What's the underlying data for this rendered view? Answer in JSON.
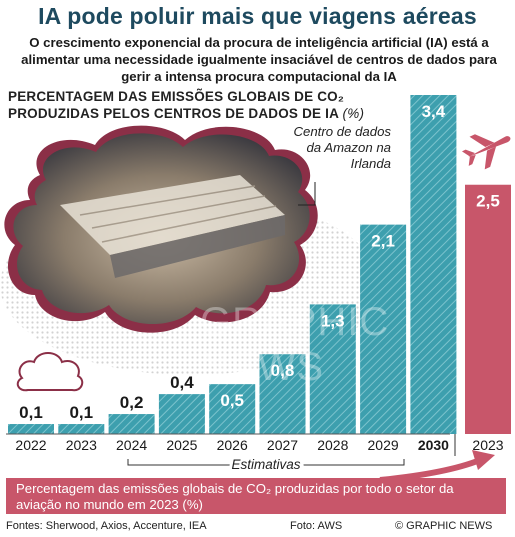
{
  "header": {
    "title": "IA pode poluir mais que viagens aéreas",
    "subtitle": "O crescimento exponencial da procura de inteligência artificial (IA) está a alimentar uma necessidade igualmente insaciável de centros de dados para gerir a intensa procura computacional da IA"
  },
  "chart_heading": {
    "line1": "PERCENTAGEM DAS EMISSÕES GLOBAIS DE CO₂",
    "line2": "PRODUZIDAS PELOS CENTROS DE DADOS DE IA",
    "unit": "(%)"
  },
  "photo_caption": "Centro de dados da Amazon na Irlanda",
  "watermark": "GRAPHIC NEWS",
  "chart_data": {
    "type": "bar",
    "categories": [
      "2022",
      "2023",
      "2024",
      "2025",
      "2026",
      "2027",
      "2028",
      "2029",
      "2030",
      "2023"
    ],
    "values": [
      0.1,
      0.1,
      0.2,
      0.4,
      0.5,
      0.8,
      1.3,
      2.1,
      3.4,
      2.5
    ],
    "value_labels": [
      "0,1",
      "0,1",
      "0,2",
      "0,4",
      "0,5",
      "0,8",
      "1,3",
      "2,1",
      "3,4",
      "2,5"
    ],
    "series_color": "#3a9aaa",
    "aviation_color": "#c8566a",
    "estimate_label": "Estimativas",
    "bold_category_index": 8,
    "aviation_index": 9
  },
  "aviation_note": "Percentagem das emissões globais de CO₂ produzidas por todo o setor da aviação no mundo em 2023 (%)",
  "footer": {
    "sources": "Fontes: Sherwood, Axios, Accenture, IEA",
    "photo": "Foto: AWS",
    "credit": "© GRAPHIC NEWS"
  }
}
